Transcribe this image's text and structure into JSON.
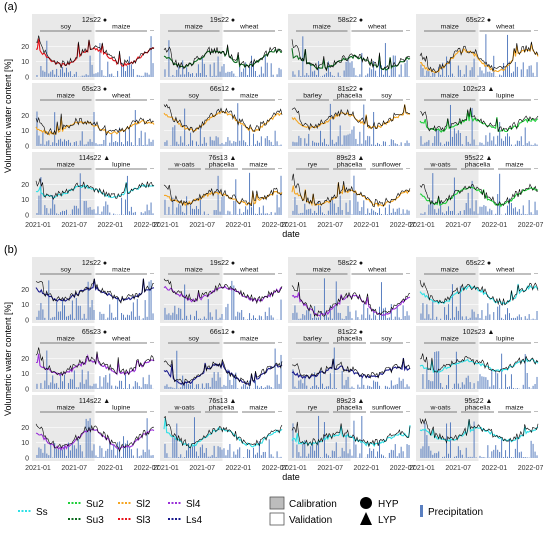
{
  "chart_data": {
    "type": "line",
    "y_axis_label": "Volumetric water content [%]",
    "x_axis_label": "date",
    "x_ticks": [
      "2021-01",
      "2021-07",
      "2022-01",
      "2022-07"
    ],
    "y_ticks": [
      0,
      10,
      20
    ],
    "ylim": [
      0,
      28
    ],
    "grid": true,
    "legend_placement": "bottom",
    "markers": {
      "HYP": "●",
      "LYP": "▲",
      "dash": "--"
    },
    "colors": {
      "Ss": "#2fe0e6",
      "Su2": "#1fcf3a",
      "Su3": "#0d6b1f",
      "Sl2": "#f5a623",
      "Sl3": "#e8141b",
      "Sl4": "#9a30d8",
      "Ls4": "#1a1a8c",
      "precip": "#5a7fc0",
      "calib_bg": "#e9e9e9",
      "valid_bg": "#ffffff",
      "observed": "#000000"
    },
    "panels": [
      {
        "label": "(a)",
        "sites": [
          {
            "id": "12s22",
            "marker": "HYP",
            "soil": "Sl3",
            "crops": [
              "soy",
              "maize"
            ],
            "calib_end": 0.5
          },
          {
            "id": "19s22",
            "marker": "HYP",
            "soil": "Su3",
            "crops": [
              "maize",
              "wheat"
            ],
            "calib_end": 0.5
          },
          {
            "id": "58s22",
            "marker": "HYP",
            "soil": "Su3",
            "crops": [
              "maize",
              "wheat"
            ],
            "calib_end": 0.5
          },
          {
            "id": "65s22",
            "marker": "HYP",
            "soil": "Sl2",
            "crops": [
              "maize",
              "wheat"
            ],
            "calib_end": 0.5
          },
          {
            "id": "65s23",
            "marker": "HYP",
            "soil": "Sl2",
            "crops": [
              "maize",
              "wheat"
            ],
            "calib_end": 0.5
          },
          {
            "id": "66s12",
            "marker": "HYP",
            "soil": "Sl2",
            "crops": [
              "soy",
              "maize"
            ],
            "calib_end": 0.5
          },
          {
            "id": "81s22",
            "marker": "HYP",
            "soil": "Sl2",
            "crops": [
              "barley",
              "phacelia",
              "soy"
            ],
            "calib_end": 0.5
          },
          {
            "id": "102s23",
            "marker": "LYP",
            "soil": "Su2",
            "crops": [
              "maize",
              "lupine"
            ],
            "calib_end": 0.5
          },
          {
            "id": "114s22",
            "marker": "LYP",
            "soil": "Ss",
            "crops": [
              "maize",
              "lupine"
            ],
            "calib_end": 0.5
          },
          {
            "id": "76s13",
            "marker": "LYP",
            "soil": "Sl2",
            "crops": [
              "w-oats",
              "phacelia",
              "maize"
            ],
            "calib_end": 0.5
          },
          {
            "id": "89s23",
            "marker": "LYP",
            "soil": "Sl2",
            "crops": [
              "rye",
              "phacelia",
              "sunflower"
            ],
            "calib_end": 0.5
          },
          {
            "id": "95s22",
            "marker": "LYP",
            "soil": "Su2",
            "crops": [
              "w-oats",
              "phacelia",
              "maize"
            ],
            "calib_end": 0.5
          }
        ]
      },
      {
        "label": "(b)",
        "sites": [
          {
            "id": "12s22",
            "marker": "HYP",
            "soil": "Ls4",
            "crops": [
              "soy",
              "maize"
            ],
            "calib_end": 0.5
          },
          {
            "id": "19s22",
            "marker": "HYP",
            "soil": "Sl4",
            "crops": [
              "maize",
              "wheat"
            ],
            "calib_end": 0.5
          },
          {
            "id": "58s22",
            "marker": "HYP",
            "soil": "Sl4",
            "crops": [
              "maize",
              "wheat"
            ],
            "calib_end": 0.5
          },
          {
            "id": "65s22",
            "marker": "HYP",
            "soil": "Ss",
            "crops": [
              "maize",
              "wheat"
            ],
            "calib_end": 0.5
          },
          {
            "id": "65s23",
            "marker": "HYP",
            "soil": "Sl4",
            "crops": [
              "maize",
              "wheat"
            ],
            "calib_end": 0.5
          },
          {
            "id": "66s12",
            "marker": "HYP",
            "soil": "Ls4",
            "crops": [
              "soy",
              "maize"
            ],
            "calib_end": 0.5
          },
          {
            "id": "81s22",
            "marker": "HYP",
            "soil": "Ls4",
            "crops": [
              "barley",
              "phacelia",
              "soy"
            ],
            "calib_end": 0.5
          },
          {
            "id": "102s23",
            "marker": "LYP",
            "soil": "Ss",
            "crops": [
              "maize",
              "lupine"
            ],
            "calib_end": 0.5
          },
          {
            "id": "114s22",
            "marker": "LYP",
            "soil": "Sl4",
            "crops": [
              "maize",
              "lupine"
            ],
            "calib_end": 0.5
          },
          {
            "id": "76s13",
            "marker": "LYP",
            "soil": "Ss",
            "crops": [
              "w-oats",
              "phacelia",
              "maize"
            ],
            "calib_end": 0.5
          },
          {
            "id": "89s23",
            "marker": "LYP",
            "soil": "Ss",
            "crops": [
              "rye",
              "phacelia",
              "sunflower"
            ],
            "calib_end": 0.5
          },
          {
            "id": "95s22",
            "marker": "LYP",
            "soil": "Ss",
            "crops": [
              "w-oats",
              "phacelia",
              "maize"
            ],
            "calib_end": 0.5
          }
        ]
      }
    ],
    "legend": {
      "soil_types": [
        "Ss",
        "Su2",
        "Su3",
        "Sl2",
        "Sl3",
        "Sl4",
        "Ls4"
      ],
      "periods": [
        {
          "key": "calib",
          "label": "Calibration"
        },
        {
          "key": "valid",
          "label": "Validation"
        }
      ],
      "markers": [
        {
          "key": "HYP",
          "label": "HYP"
        },
        {
          "key": "LYP",
          "label": "LYP"
        }
      ],
      "precip_label": "Precipitation"
    }
  }
}
